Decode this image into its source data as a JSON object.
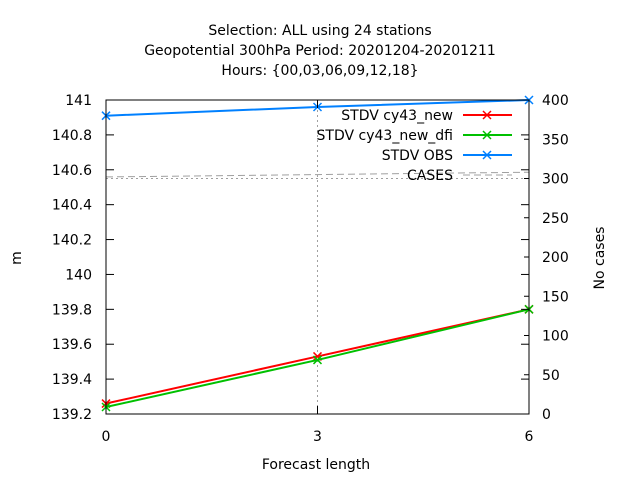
{
  "chart_data": {
    "type": "line",
    "title_lines": [
      "Selection: ALL using    24 stations",
      "Geopotential 300hPa   Period: 20201204-20201211",
      "Hours: {00,03,06,09,12,18}"
    ],
    "xlabel": "Forecast length",
    "ylabel": "m",
    "y2label": "No cases",
    "x": [
      0,
      3,
      6
    ],
    "xlim": [
      0,
      6
    ],
    "xticks": [
      "0",
      "3",
      "6"
    ],
    "ylim": [
      139.2,
      141
    ],
    "yticks": [
      "139.2",
      "139.4",
      "139.6",
      "139.8",
      "140",
      "140.2",
      "140.4",
      "140.6",
      "140.8",
      "141"
    ],
    "y2lim": [
      0,
      400
    ],
    "y2ticks": [
      "0",
      "50",
      "100",
      "150",
      "200",
      "250",
      "300",
      "350",
      "400"
    ],
    "grid": "dashed gridlines at x=3 and y2=300 only",
    "legend_position": "top-right",
    "series": [
      {
        "name": "STDV cy43_new",
        "color": "#ff0000",
        "axis": "y",
        "marker": "x",
        "values": [
          139.26,
          139.53,
          139.8
        ]
      },
      {
        "name": "STDV cy43_new_dfi",
        "color": "#00c000",
        "axis": "y",
        "marker": "x",
        "values": [
          139.24,
          139.51,
          139.8
        ]
      },
      {
        "name": "STDV OBS",
        "color": "#0080ff",
        "axis": "y",
        "marker": "x",
        "values": [
          140.91,
          140.96,
          141.0
        ]
      },
      {
        "name": "CASES",
        "color": "#a0a0a0",
        "axis": "y2",
        "marker": "none",
        "dashed": true,
        "values": [
          302,
          305,
          308
        ]
      }
    ]
  }
}
